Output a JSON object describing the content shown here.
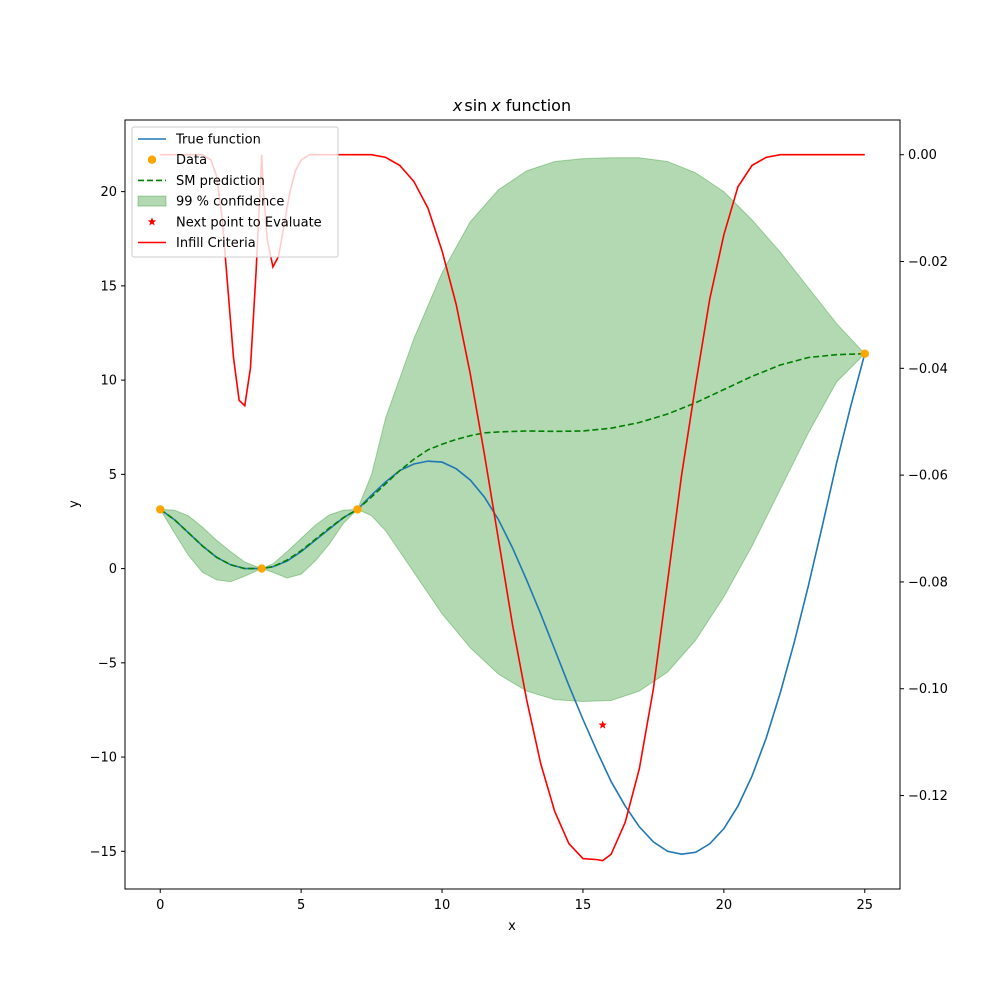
{
  "chart_data": {
    "type": "line",
    "title": "x sin x function",
    "title_math": "x",
    "title_math_sin": "sin",
    "title_math_x": "x",
    "title_suffix": "function",
    "xlabel": "x",
    "ylabel": "y",
    "xlim": [
      -1.25,
      26.25
    ],
    "ylim": [
      -17.0,
      23.8
    ],
    "y2lim": [
      -0.1375,
      0.0065
    ],
    "x_ticks": [
      0,
      5,
      10,
      15,
      20,
      25
    ],
    "y_ticks": [
      -15,
      -10,
      -5,
      0,
      5,
      10,
      15,
      20
    ],
    "y2_ticks": [
      0.0,
      -0.02,
      -0.04,
      -0.06,
      -0.08,
      -0.1,
      -0.12
    ],
    "x_tick_labels": [
      "0",
      "5",
      "10",
      "15",
      "20",
      "25"
    ],
    "y_tick_labels": [
      "−15",
      "−10",
      "−5",
      "0",
      "5",
      "10",
      "15",
      "20"
    ],
    "y2_tick_labels": [
      "0.00",
      "−0.02",
      "−0.04",
      "−0.06",
      "−0.08",
      "−0.10",
      "−0.12"
    ],
    "grid": false,
    "legend_position": "top-left",
    "legend": [
      {
        "label": "True function",
        "kind": "line",
        "color": "#1f77b4"
      },
      {
        "label": "Data",
        "kind": "marker",
        "color": "#ffa500"
      },
      {
        "label": "SM prediction",
        "kind": "dashed",
        "color": "#008000"
      },
      {
        "label": "99 % confidence",
        "kind": "patch",
        "color": "#008000"
      },
      {
        "label": "Next point to Evaluate",
        "kind": "star",
        "color": "#ff0000"
      },
      {
        "label": "Infill Criteria",
        "kind": "line",
        "color": "#ff0000"
      }
    ],
    "data_points": {
      "x": [
        0,
        3.6,
        7.0,
        25.0
      ],
      "y": [
        3.14,
        0.0,
        3.14,
        11.4
      ]
    },
    "next_point": {
      "x": 15.7,
      "y": -8.3
    },
    "sm_prediction": {
      "x": [
        0,
        0.5,
        1,
        1.5,
        2,
        2.5,
        3,
        3.6,
        4,
        4.5,
        5,
        5.5,
        6,
        6.5,
        7,
        7.5,
        8,
        8.5,
        9,
        9.5,
        10,
        10.5,
        11,
        11.5,
        12,
        13,
        14,
        15,
        16,
        17,
        18,
        19,
        20,
        21,
        22,
        23,
        24,
        25
      ],
      "y": [
        3.14,
        2.6,
        1.9,
        1.2,
        0.6,
        0.2,
        0.0,
        0.0,
        0.1,
        0.45,
        0.95,
        1.55,
        2.15,
        2.7,
        3.14,
        3.8,
        4.5,
        5.2,
        5.8,
        6.3,
        6.6,
        6.85,
        7.05,
        7.2,
        7.25,
        7.3,
        7.28,
        7.3,
        7.45,
        7.75,
        8.2,
        8.8,
        9.5,
        10.2,
        10.8,
        11.2,
        11.35,
        11.4
      ]
    },
    "confidence_upper": {
      "x": [
        0,
        0.5,
        1,
        1.5,
        2,
        2.5,
        3,
        3.6,
        4,
        4.5,
        5,
        5.5,
        6,
        6.5,
        7,
        7.5,
        8,
        9,
        10,
        11,
        12,
        13,
        14,
        15,
        16,
        17,
        18,
        19,
        20,
        21,
        22,
        23,
        24,
        25
      ],
      "y": [
        3.14,
        3.1,
        2.8,
        2.2,
        1.5,
        0.9,
        0.35,
        0.0,
        0.25,
        0.9,
        1.6,
        2.3,
        2.85,
        3.1,
        3.14,
        5.0,
        8.0,
        12.2,
        15.7,
        18.4,
        20.1,
        21.1,
        21.6,
        21.75,
        21.8,
        21.8,
        21.6,
        21.0,
        20.0,
        18.5,
        16.8,
        14.9,
        13.0,
        11.4
      ]
    },
    "confidence_lower": {
      "x": [
        0,
        0.5,
        1,
        1.5,
        2,
        2.5,
        3,
        3.6,
        4,
        4.5,
        5,
        5.5,
        6,
        6.5,
        7,
        7.5,
        8,
        9,
        10,
        11,
        12,
        13,
        14,
        15,
        16,
        17,
        18,
        19,
        20,
        21,
        22,
        23,
        24,
        25
      ],
      "y": [
        3.14,
        1.9,
        0.7,
        -0.2,
        -0.6,
        -0.7,
        -0.4,
        0.0,
        -0.2,
        -0.5,
        -0.3,
        0.4,
        1.3,
        2.4,
        3.14,
        2.8,
        2.0,
        -0.2,
        -2.4,
        -4.2,
        -5.6,
        -6.5,
        -6.95,
        -7.05,
        -7.0,
        -6.5,
        -5.5,
        -3.8,
        -1.5,
        1.2,
        4.2,
        7.2,
        9.9,
        11.4
      ]
    },
    "true_function": {
      "x": [
        0,
        0.5,
        1,
        1.5,
        2,
        2.5,
        3,
        3.6,
        4,
        4.5,
        5,
        5.5,
        6,
        6.5,
        7,
        7.5,
        8,
        8.5,
        9,
        9.5,
        10,
        10.5,
        11,
        11.5,
        12,
        12.5,
        13,
        13.5,
        14,
        14.5,
        15,
        15.5,
        16,
        16.5,
        17,
        17.5,
        18,
        18.5,
        19,
        19.5,
        20,
        20.5,
        21,
        21.5,
        22,
        22.5,
        23,
        23.5,
        24,
        24.5,
        25
      ],
      "y": [
        3.14,
        2.6,
        1.9,
        1.2,
        0.6,
        0.2,
        0.0,
        0.0,
        0.1,
        0.4,
        0.9,
        1.5,
        2.1,
        2.7,
        3.14,
        3.9,
        4.6,
        5.2,
        5.55,
        5.7,
        5.65,
        5.3,
        4.7,
        3.8,
        2.6,
        1.1,
        -0.6,
        -2.4,
        -4.3,
        -6.2,
        -8.0,
        -9.7,
        -11.3,
        -12.6,
        -13.7,
        -14.5,
        -15.0,
        -15.15,
        -15.05,
        -14.6,
        -13.8,
        -12.6,
        -11.0,
        -9.0,
        -6.6,
        -3.9,
        -0.9,
        2.3,
        5.6,
        8.6,
        11.4
      ]
    },
    "infill_criteria": {
      "axis": "secondary",
      "x": [
        0,
        0.5,
        1,
        1.5,
        1.8,
        2.0,
        2.2,
        2.4,
        2.6,
        2.8,
        3.0,
        3.2,
        3.4,
        3.55,
        3.6,
        3.65,
        3.8,
        4.0,
        4.2,
        4.4,
        4.6,
        4.8,
        5.0,
        5.3,
        5.7,
        6.5,
        7.5,
        8.0,
        8.5,
        9.0,
        9.5,
        10.0,
        10.5,
        11.0,
        11.5,
        12.0,
        12.5,
        13.0,
        13.5,
        14.0,
        14.5,
        15.0,
        15.5,
        15.7,
        16.0,
        16.5,
        17.0,
        17.5,
        18.0,
        18.5,
        19.0,
        19.5,
        20.0,
        20.5,
        21.0,
        21.5,
        22.0,
        23.0,
        24.0,
        25.0
      ],
      "y": [
        0.0,
        0.0,
        0.0,
        0.0,
        -0.001,
        -0.004,
        -0.012,
        -0.025,
        -0.038,
        -0.046,
        -0.047,
        -0.04,
        -0.022,
        -0.006,
        0.0,
        -0.006,
        -0.016,
        -0.021,
        -0.019,
        -0.013,
        -0.007,
        -0.003,
        -0.001,
        0.0,
        0.0,
        0.0,
        0.0,
        -0.0005,
        -0.002,
        -0.005,
        -0.01,
        -0.018,
        -0.028,
        -0.041,
        -0.056,
        -0.072,
        -0.088,
        -0.102,
        -0.114,
        -0.123,
        -0.129,
        -0.1318,
        -0.132,
        -0.1322,
        -0.131,
        -0.125,
        -0.115,
        -0.1,
        -0.08,
        -0.06,
        -0.043,
        -0.027,
        -0.015,
        -0.006,
        -0.002,
        -0.0005,
        0.0,
        0.0,
        0.0,
        0.0
      ]
    }
  }
}
